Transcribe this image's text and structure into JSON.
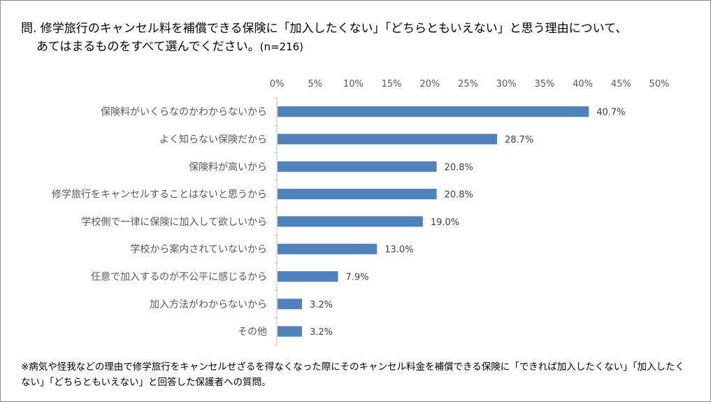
{
  "header": {
    "question": "問. 修学旅行のキャンセル料を補償できる保険に「加入したくない」「どちらともいえない」と思う理由について、",
    "question_cont": "あてはまるものをすべて選んでください。",
    "sample": "(n=216)"
  },
  "footnote": "※病気や怪我などの理由で修学旅行をキャンセルせざるを得なくなった際にそのキャンセル料金を補償できる保険に「できれば加入したくない」「加入したくない」「どちらともいえない」と回答した保護者への質問。",
  "chart_data": {
    "type": "bar",
    "orientation": "horizontal",
    "categories": [
      "保険料がいくらなのかわからないから",
      "よく知らない保険だから",
      "保険料が高いから",
      "修学旅行をキャンセルすることはないと思うから",
      "学校側で一律に保険に加入して欲しいから",
      "学校から案内されていないから",
      "任意で加入するのが不公平に感じるから",
      "加入方法がわからないから",
      "その他"
    ],
    "values": [
      40.7,
      28.7,
      20.8,
      20.8,
      19.0,
      13.0,
      7.9,
      3.2,
      3.2
    ],
    "value_labels": [
      "40.7%",
      "28.7%",
      "20.8%",
      "20.8%",
      "19.0%",
      "13.0%",
      "7.9%",
      "3.2%",
      "3.2%"
    ],
    "x_ticks": [
      "0%",
      "5%",
      "10%",
      "15%",
      "20%",
      "25%",
      "30%",
      "35%",
      "40%",
      "45%",
      "50%"
    ],
    "xlim": [
      0,
      50
    ],
    "x_axis_position": "top",
    "grid": false,
    "bar_color": "#4f81bd"
  }
}
